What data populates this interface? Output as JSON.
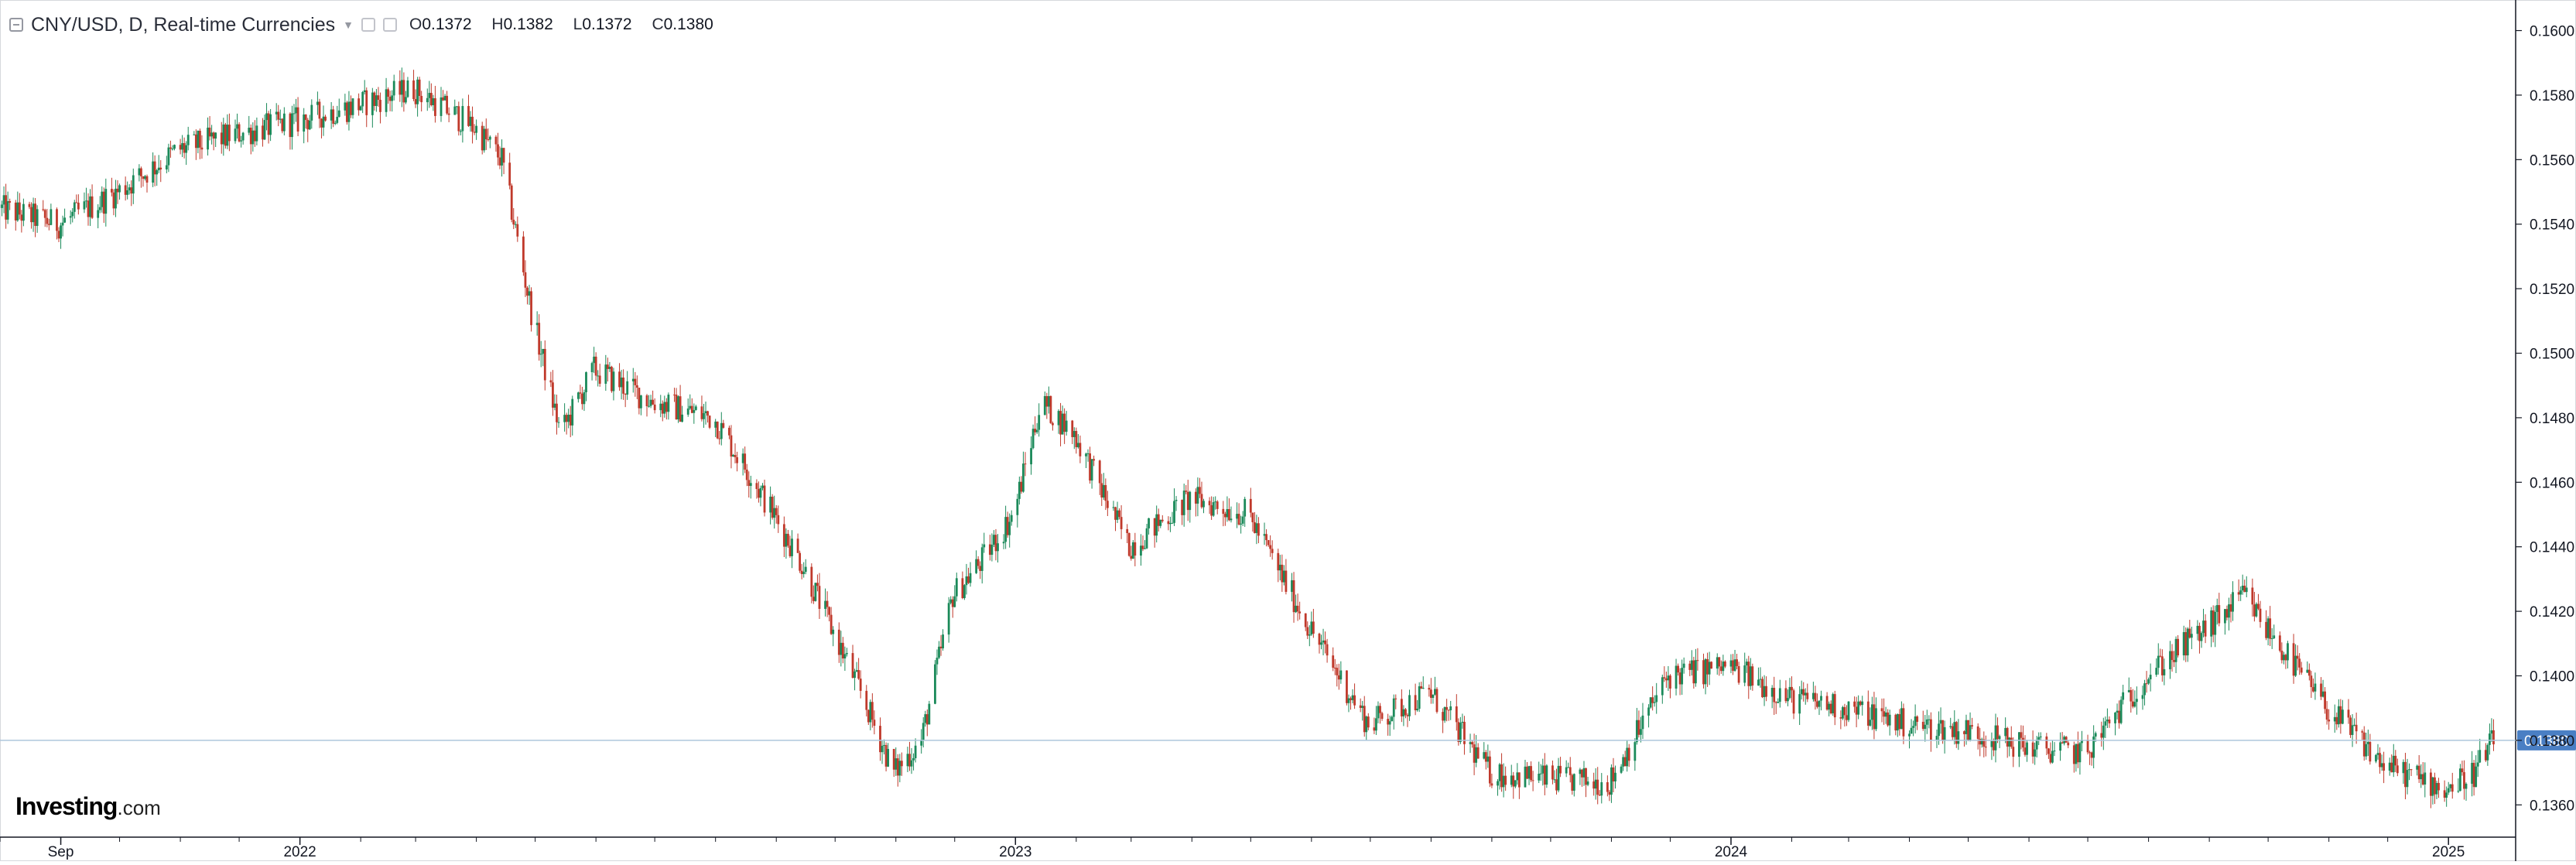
{
  "header": {
    "symbol_label": "CNY/USD, D, Real-time Currencies",
    "ohlc": [
      {
        "key": "O",
        "value": "0.1372"
      },
      {
        "key": "H",
        "value": "0.1382"
      },
      {
        "key": "L",
        "value": "0.1372"
      },
      {
        "key": "C",
        "value": "0.1380"
      }
    ]
  },
  "logo": {
    "brand": "Investing",
    "suffix": ".com"
  },
  "colors": {
    "up": "#1b8a5a",
    "down": "#c0392b",
    "price_line": "#aec6dc",
    "price_tag": "#4a7fc4"
  },
  "chart_data": {
    "type": "candlestick",
    "title": "CNY/USD, D, Real-time Currencies",
    "x_tick_labels": [
      "Sep",
      "2022",
      "2023",
      "2024",
      "2025"
    ],
    "y_ticks": [
      0.136,
      0.138,
      0.14,
      0.142,
      0.144,
      0.146,
      0.148,
      0.15,
      0.152,
      0.154,
      0.156,
      0.158,
      0.16
    ],
    "ylim": [
      0.135,
      0.1609
    ],
    "current_price": 0.138,
    "current_price_label": "0.1380",
    "path_points": [
      [
        "2021-08-01",
        0.1545
      ],
      [
        "2021-09-01",
        0.154
      ],
      [
        "2021-10-01",
        0.155
      ],
      [
        "2021-11-01",
        0.1563
      ],
      [
        "2021-12-01",
        0.1568
      ],
      [
        "2022-01-01",
        0.1572
      ],
      [
        "2022-02-01",
        0.1577
      ],
      [
        "2022-03-01",
        0.1582
      ],
      [
        "2022-04-01",
        0.157
      ],
      [
        "2022-04-15",
        0.156
      ],
      [
        "2022-05-01",
        0.151
      ],
      [
        "2022-05-15",
        0.1475
      ],
      [
        "2022-06-01",
        0.1495
      ],
      [
        "2022-07-01",
        0.1485
      ],
      [
        "2022-08-01",
        0.148
      ],
      [
        "2022-08-20",
        0.1462
      ],
      [
        "2022-09-15",
        0.1435
      ],
      [
        "2022-10-15",
        0.1395
      ],
      [
        "2022-11-01",
        0.137
      ],
      [
        "2022-11-15",
        0.138
      ],
      [
        "2022-12-01",
        0.1425
      ],
      [
        "2022-12-15",
        0.1435
      ],
      [
        "2023-01-01",
        0.145
      ],
      [
        "2023-01-15",
        0.1485
      ],
      [
        "2023-02-01",
        0.1475
      ],
      [
        "2023-03-01",
        0.144
      ],
      [
        "2023-04-01",
        0.1455
      ],
      [
        "2023-05-01",
        0.145
      ],
      [
        "2023-06-01",
        0.1415
      ],
      [
        "2023-07-01",
        0.1385
      ],
      [
        "2023-08-01",
        0.1395
      ],
      [
        "2023-09-01",
        0.137
      ],
      [
        "2023-10-01",
        0.1368
      ],
      [
        "2023-11-01",
        0.1367
      ],
      [
        "2023-12-01",
        0.14
      ],
      [
        "2024-01-01",
        0.1403
      ],
      [
        "2024-02-01",
        0.1393
      ],
      [
        "2024-03-01",
        0.139
      ],
      [
        "2024-04-01",
        0.1385
      ],
      [
        "2024-05-01",
        0.1383
      ],
      [
        "2024-06-01",
        0.1378
      ],
      [
        "2024-07-01",
        0.1376
      ],
      [
        "2024-08-01",
        0.14
      ],
      [
        "2024-09-01",
        0.1415
      ],
      [
        "2024-09-20",
        0.1425
      ],
      [
        "2024-10-01",
        0.1415
      ],
      [
        "2024-11-01",
        0.139
      ],
      [
        "2024-12-01",
        0.1372
      ],
      [
        "2025-01-01",
        0.1365
      ],
      [
        "2025-01-15",
        0.137
      ],
      [
        "2025-01-25",
        0.138
      ]
    ],
    "x_range": [
      "2021-08-01",
      "2025-01-25"
    ],
    "grid": false,
    "legend": "none"
  }
}
